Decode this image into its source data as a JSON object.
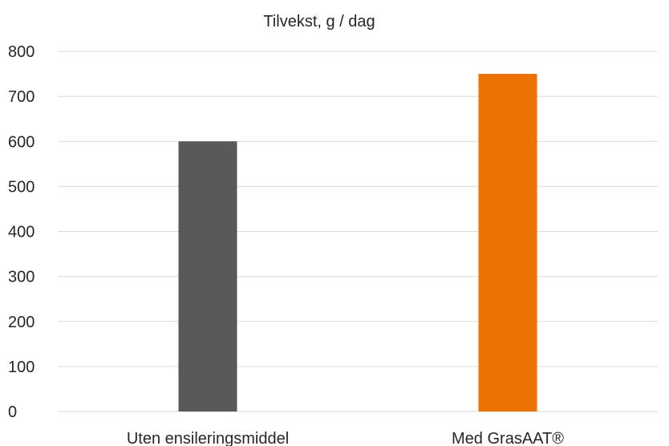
{
  "chart_data": {
    "type": "bar",
    "title": "Tilvekst, g / dag",
    "categories": [
      "Uten ensileringsmiddel",
      "Med GrasAAT®"
    ],
    "values": [
      600,
      750
    ],
    "bar_colors": [
      "#595959",
      "#ed7204"
    ],
    "ylim": [
      0,
      800
    ],
    "yticks": [
      0,
      100,
      200,
      300,
      400,
      500,
      600,
      700,
      800
    ],
    "grid": true,
    "legend": "none"
  }
}
